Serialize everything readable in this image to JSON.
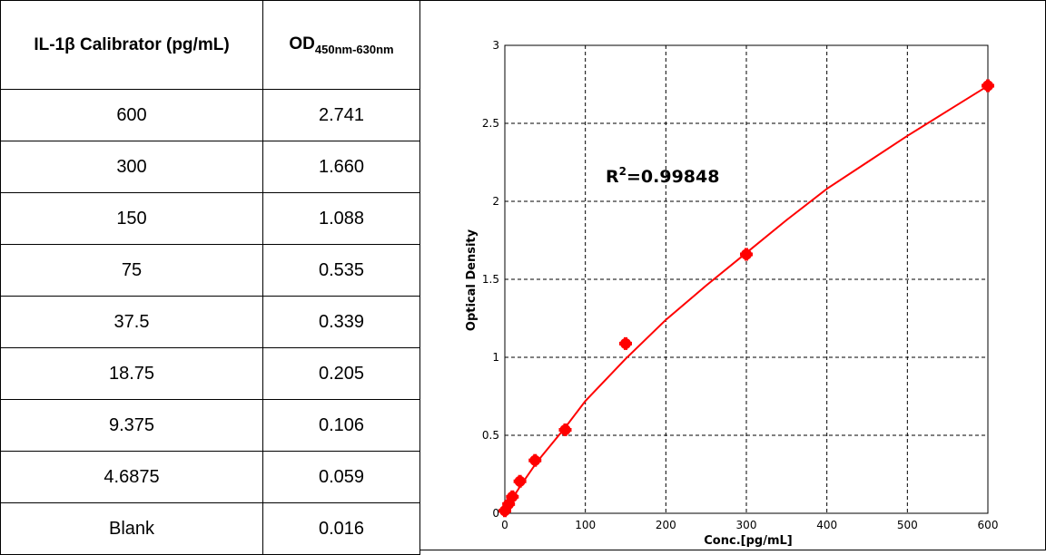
{
  "table": {
    "headers": {
      "calibrator": "IL-1β Calibrator (pg/mL)",
      "od_main": "OD",
      "od_sub": "450nm-630nm"
    },
    "rows": [
      {
        "conc": "600",
        "od": "2.741"
      },
      {
        "conc": "300",
        "od": "1.660"
      },
      {
        "conc": "150",
        "od": "1.088"
      },
      {
        "conc": "75",
        "od": "0.535"
      },
      {
        "conc": "37.5",
        "od": "0.339"
      },
      {
        "conc": "18.75",
        "od": "0.205"
      },
      {
        "conc": "9.375",
        "od": "0.106"
      },
      {
        "conc": "4.6875",
        "od": "0.059"
      },
      {
        "conc": "Blank",
        "od": "0.016"
      }
    ]
  },
  "chart_data": {
    "type": "scatter",
    "title": "",
    "xlabel": "Conc.[pg/mL]",
    "ylabel": "Optical Density",
    "xlim": [
      0,
      600
    ],
    "ylim": [
      0,
      3
    ],
    "xticks": [
      0,
      100,
      200,
      300,
      400,
      500,
      600
    ],
    "yticks": [
      0,
      0.5,
      1,
      1.5,
      2,
      2.5,
      3
    ],
    "xtick_labels": [
      "0",
      "100",
      "200",
      "300",
      "400",
      "500",
      "600"
    ],
    "ytick_labels": [
      "0",
      "0.5",
      "1",
      "1.5",
      "2",
      "2.5",
      "3"
    ],
    "grid": true,
    "annotation": {
      "prefix": "R",
      "sup": "2",
      "value": "=0.99848"
    },
    "points": [
      {
        "x": 600,
        "y": 2.741
      },
      {
        "x": 300,
        "y": 1.66
      },
      {
        "x": 150,
        "y": 1.088
      },
      {
        "x": 75,
        "y": 0.535
      },
      {
        "x": 37.5,
        "y": 0.339
      },
      {
        "x": 18.75,
        "y": 0.205
      },
      {
        "x": 9.375,
        "y": 0.106
      },
      {
        "x": 4.6875,
        "y": 0.059
      },
      {
        "x": 0,
        "y": 0.016
      }
    ],
    "fit_curve": [
      {
        "x": 0,
        "y": 0.016
      },
      {
        "x": 5,
        "y": 0.06
      },
      {
        "x": 10,
        "y": 0.1
      },
      {
        "x": 20,
        "y": 0.18
      },
      {
        "x": 40,
        "y": 0.33
      },
      {
        "x": 75,
        "y": 0.55
      },
      {
        "x": 100,
        "y": 0.72
      },
      {
        "x": 150,
        "y": 0.99
      },
      {
        "x": 200,
        "y": 1.24
      },
      {
        "x": 250,
        "y": 1.46
      },
      {
        "x": 300,
        "y": 1.67
      },
      {
        "x": 350,
        "y": 1.88
      },
      {
        "x": 400,
        "y": 2.08
      },
      {
        "x": 450,
        "y": 2.25
      },
      {
        "x": 500,
        "y": 2.42
      },
      {
        "x": 550,
        "y": 2.58
      },
      {
        "x": 600,
        "y": 2.74
      }
    ],
    "colors": {
      "series": "#ff0000",
      "grid": "#000000",
      "axis": "#000000"
    }
  }
}
